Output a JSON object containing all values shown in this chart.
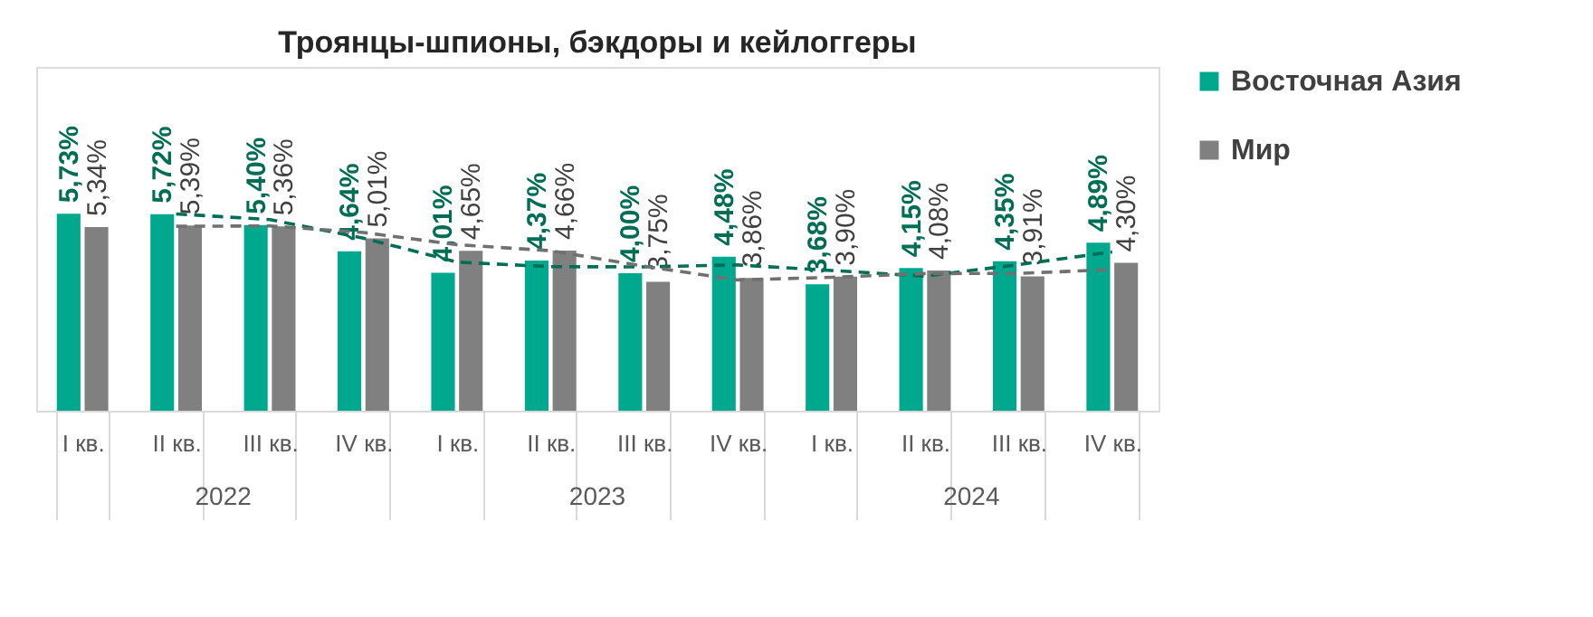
{
  "chart_data": {
    "type": "bar",
    "title": "Троянцы-шпионы, бэкдоры и кейлоггеры",
    "categories": [
      "I кв.",
      "II кв.",
      "III кв.",
      "IV кв.",
      "I кв.",
      "II кв.",
      "III кв.",
      "IV кв.",
      "I кв.",
      "II кв.",
      "III кв.",
      "IV кв."
    ],
    "series": [
      {
        "name": "Восточная Азия",
        "color": "#00a88e",
        "values": [
          5.73,
          5.72,
          5.4,
          4.64,
          4.01,
          4.37,
          4.0,
          4.48,
          3.68,
          4.15,
          4.35,
          4.89
        ],
        "value_labels": [
          "5,73%",
          "5,72%",
          "5,40%",
          "4,64%",
          "4,01%",
          "4,37%",
          "4,00%",
          "4,48%",
          "3,68%",
          "4,15%",
          "4,35%",
          "4,89%"
        ]
      },
      {
        "name": "Мир",
        "color": "#808080",
        "values": [
          5.34,
          5.39,
          5.36,
          5.01,
          4.65,
          4.66,
          3.75,
          3.86,
          3.9,
          4.08,
          3.91,
          4.3
        ],
        "value_labels": [
          "5,34%",
          "5,39%",
          "5,36%",
          "5,01%",
          "4,65%",
          "4,66%",
          "3,75%",
          "3,86%",
          "3,90%",
          "4,08%",
          "3,91%",
          "4,30%"
        ]
      },
      {
        "type": "line",
        "color": "#006d55",
        "line_style": "dashed",
        "values": [
          null,
          5.725,
          5.56,
          5.02,
          4.325,
          4.19,
          4.185,
          4.24,
          4.08,
          3.915,
          4.25,
          4.62
        ]
      },
      {
        "type": "line",
        "color": "#707070",
        "line_style": "dashed",
        "values": [
          null,
          5.365,
          5.375,
          5.185,
          4.83,
          4.655,
          4.205,
          3.805,
          3.88,
          3.99,
          3.995,
          4.105
        ]
      }
    ],
    "annotations": [
      "2022",
      "2023",
      "2024"
    ],
    "ylim": [
      0,
      10
    ],
    "tick_labels": "x",
    "legend": "right",
    "grid": false
  }
}
